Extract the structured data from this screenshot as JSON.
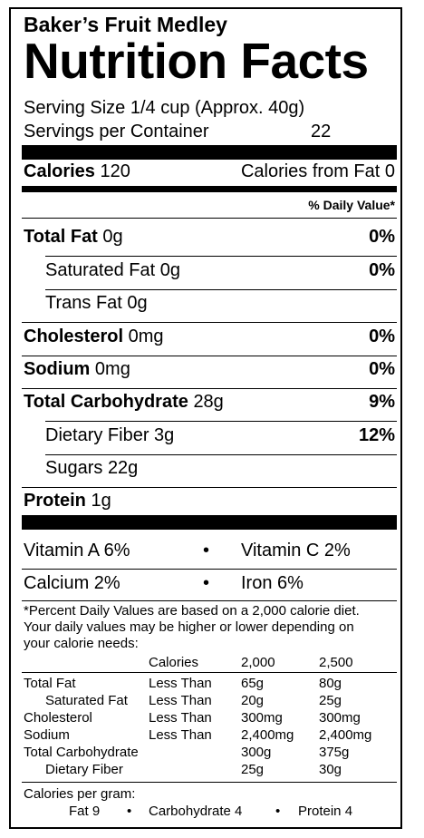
{
  "product_name": "Baker’s Fruit Medley",
  "title": "Nutrition Facts",
  "serving_size": "Serving Size 1/4 cup (Approx. 40g)",
  "servings_label": "Servings per Container",
  "servings_value": "22",
  "calories_label": "Calories",
  "calories_value": "120",
  "calories_fat": "Calories from Fat 0",
  "dv_header": "% Daily Value*",
  "nutrients": [
    {
      "name": "Total Fat",
      "amount": "0g",
      "dv": "0%"
    },
    {
      "name": "Saturated Fat",
      "amount": "0g",
      "dv": "0%"
    },
    {
      "name": "Trans Fat",
      "amount": "0g",
      "dv": ""
    },
    {
      "name": "Cholesterol",
      "amount": "0mg",
      "dv": "0%"
    },
    {
      "name": "Sodium",
      "amount": "0mg",
      "dv": "0%"
    },
    {
      "name": "Total Carbohydrate",
      "amount": "28g",
      "dv": "9%"
    },
    {
      "name": "Dietary Fiber",
      "amount": "3g",
      "dv": "12%"
    },
    {
      "name": "Sugars",
      "amount": "22g",
      "dv": ""
    },
    {
      "name": "Protein",
      "amount": "1g",
      "dv": ""
    }
  ],
  "vitamins": [
    {
      "left": "Vitamin A 6%",
      "right": "Vitamin C 2%"
    },
    {
      "left": "Calcium 2%",
      "right": "Iron 6%"
    }
  ],
  "bullet": "•",
  "footnote": "*Percent Daily Values are based on a 2,000 calorie diet. Your daily values may be higher or lower depending on your calorie needs:",
  "table": {
    "header": [
      "Calories",
      "2,000",
      "2,500"
    ],
    "rows": [
      [
        "Total Fat",
        "Less Than",
        "65g",
        "80g"
      ],
      [
        "Saturated Fat",
        "Less Than",
        "20g",
        "25g"
      ],
      [
        "Cholesterol",
        "Less Than",
        "300mg",
        "300mg"
      ],
      [
        "Sodium",
        "Less Than",
        "2,400mg",
        "2,400mg"
      ],
      [
        "Total Carbohydrate",
        "",
        "300g",
        "375g"
      ],
      [
        "Dietary Fiber",
        "",
        "25g",
        "30g"
      ]
    ]
  },
  "calories_per_gram_label": "Calories per gram:",
  "calories_per_gram": [
    "Fat 9",
    "Carbohydrate 4",
    "Protein 4"
  ]
}
